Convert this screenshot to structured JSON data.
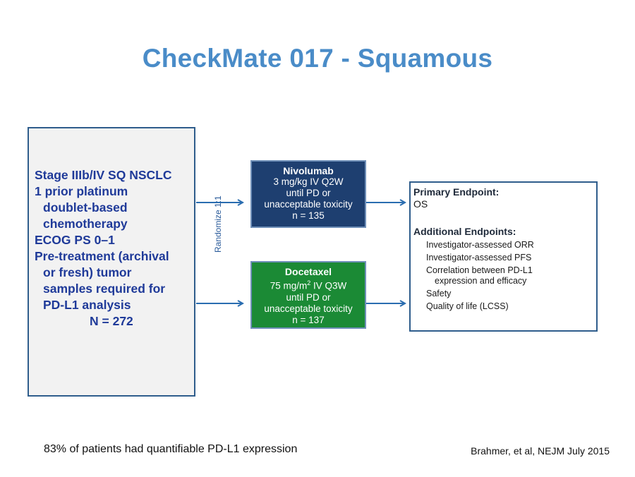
{
  "title": "CheckMate 017 - Squamous",
  "criteria": {
    "lines": [
      "Stage IIIb/IV SQ NSCLC",
      "1 prior platinum",
      "doublet-based",
      "chemotherapy",
      "ECOG PS 0–1",
      "Pre-treatment (archival",
      "or fresh) tumor",
      "samples required for",
      "PD-L1 analysis"
    ],
    "n": "N = 272"
  },
  "randomize": "Randomize 1:1",
  "arms": {
    "nivolumab": {
      "name": "Nivolumab",
      "dose": "3 mg/kg IV Q2W",
      "until": "until PD or",
      "toxicity": "unacceptable toxicity",
      "n": "n = 135",
      "color": "#1e3f70"
    },
    "docetaxel": {
      "name": "Docetaxel",
      "dose_prefix": "75 mg/m",
      "dose_sup": "2",
      "dose_suffix": " IV Q3W",
      "until": "until PD or",
      "toxicity": "unacceptable toxicity",
      "n": "n = 137",
      "color": "#1b8a35"
    }
  },
  "endpoints": {
    "primary_label": "Primary Endpoint:",
    "primary_value": "OS",
    "additional_label": "Additional Endpoints:",
    "items": [
      "Investigator-assessed ORR",
      "Investigator-assessed PFS",
      "Correlation between PD-L1",
      "expression and efficacy",
      "Safety",
      "Quality of life (LCSS)"
    ]
  },
  "footnote": "83% of patients had quantifiable PD-L1 expression",
  "citation": "Brahmer, et al, NEJM July 2015",
  "colors": {
    "title": "#4a8cc8",
    "arrow": "#2a6db0",
    "criteria_text": "#1f3a99"
  }
}
